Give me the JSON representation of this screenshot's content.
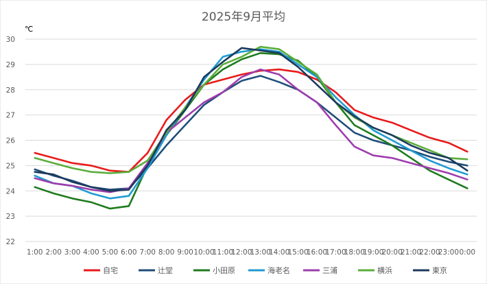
{
  "chart_data": {
    "type": "line",
    "title": "2025年9月平均",
    "unit": "℃",
    "xlabel": "",
    "ylabel": "℃",
    "ylim": [
      22,
      30
    ],
    "yticks": [
      22,
      23,
      24,
      25,
      26,
      27,
      28,
      29,
      30
    ],
    "grid": true,
    "legend": "bottom",
    "categories": [
      "1:00",
      "2:00",
      "3:00",
      "4:00",
      "5:00",
      "6:00",
      "7:00",
      "8:00",
      "9:00",
      "10:00",
      "11:00",
      "12:00",
      "13:00",
      "14:00",
      "15:00",
      "16:00",
      "17:00",
      "18:00",
      "19:00",
      "20:00",
      "21:00",
      "22:00",
      "23:00",
      "0:00"
    ],
    "series": [
      {
        "name": "自宅",
        "color": "#E81A1A",
        "values": [
          25.5,
          25.3,
          25.1,
          25.0,
          24.8,
          24.75,
          25.5,
          26.8,
          27.6,
          28.2,
          28.4,
          28.6,
          28.75,
          28.8,
          28.7,
          28.4,
          27.9,
          27.2,
          26.9,
          26.7,
          26.4,
          26.1,
          25.9,
          25.55
        ]
      },
      {
        "name": "辻堂",
        "color": "#1F4E79",
        "values": [
          24.85,
          24.6,
          24.4,
          24.15,
          24.05,
          24.1,
          24.9,
          25.8,
          26.6,
          27.4,
          27.9,
          28.35,
          28.55,
          28.3,
          28.0,
          27.5,
          26.9,
          26.3,
          26.0,
          25.8,
          25.6,
          25.35,
          25.15,
          25.0
        ]
      },
      {
        "name": "小田原",
        "color": "#1E7B1E",
        "values": [
          24.15,
          23.9,
          23.7,
          23.55,
          23.3,
          23.4,
          25.0,
          26.2,
          27.2,
          28.2,
          28.8,
          29.2,
          29.45,
          29.4,
          29.15,
          28.5,
          27.5,
          26.6,
          26.2,
          25.8,
          25.3,
          24.8,
          24.45,
          24.1
        ]
      },
      {
        "name": "海老名",
        "color": "#1F9BD1",
        "values": [
          24.6,
          24.3,
          24.2,
          23.9,
          23.7,
          23.8,
          24.9,
          26.2,
          27.3,
          28.4,
          29.3,
          29.5,
          29.6,
          29.5,
          29.0,
          28.5,
          27.7,
          27.0,
          26.4,
          26.0,
          25.6,
          25.2,
          24.9,
          24.65
        ]
      },
      {
        "name": "三浦",
        "color": "#9E3DAE",
        "values": [
          24.5,
          24.3,
          24.2,
          24.05,
          23.95,
          24.1,
          25.1,
          26.3,
          26.9,
          27.5,
          27.9,
          28.5,
          28.8,
          28.6,
          28.0,
          27.5,
          26.6,
          25.75,
          25.4,
          25.3,
          25.1,
          24.9,
          24.7,
          24.45
        ]
      },
      {
        "name": "横浜",
        "color": "#5BAD3A",
        "values": [
          25.3,
          25.1,
          24.9,
          24.75,
          24.7,
          24.75,
          25.2,
          26.3,
          27.3,
          28.2,
          29.0,
          29.3,
          29.7,
          29.6,
          29.1,
          28.6,
          27.5,
          26.9,
          26.5,
          26.2,
          25.9,
          25.6,
          25.3,
          25.25
        ]
      },
      {
        "name": "東京",
        "color": "#1C3A5E",
        "values": [
          24.75,
          24.65,
          24.35,
          24.15,
          24.0,
          24.05,
          25.0,
          26.4,
          27.2,
          28.5,
          29.1,
          29.65,
          29.55,
          29.45,
          28.9,
          28.2,
          27.5,
          26.95,
          26.5,
          26.2,
          25.8,
          25.5,
          25.3,
          24.8
        ]
      }
    ]
  }
}
